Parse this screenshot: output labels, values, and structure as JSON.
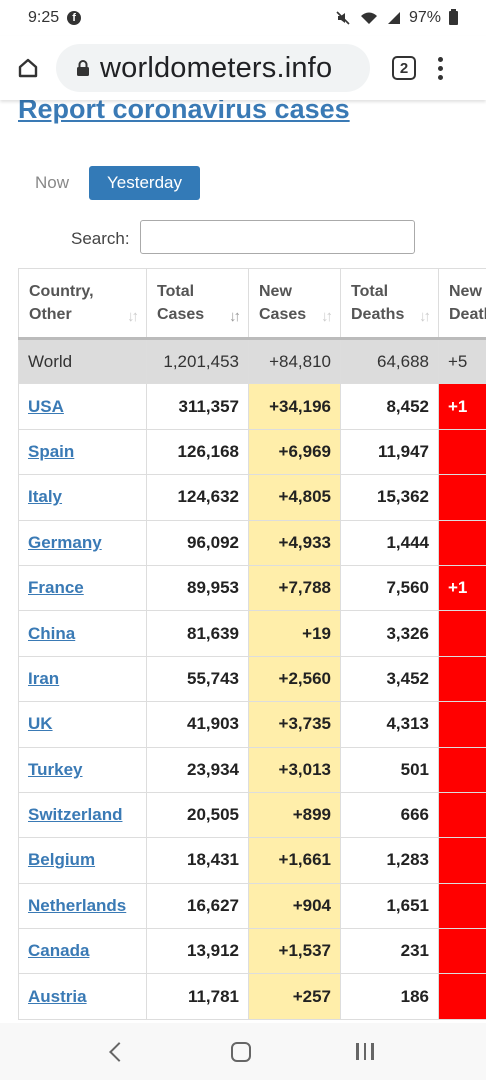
{
  "status_bar": {
    "time": "9:25",
    "battery": "97%",
    "facebook_glyph": "f"
  },
  "browser": {
    "url": "worldometers.info",
    "tab_count": "2"
  },
  "page": {
    "heading": "Report coronavirus cases",
    "tabs": {
      "now": "Now",
      "yesterday": "Yesterday",
      "active": "yesterday"
    },
    "search_label": "Search:",
    "search_value": ""
  },
  "table": {
    "headers": [
      "Country,\nOther",
      "Total\nCases",
      "New\nCases",
      "Total\nDeaths",
      "New\nDeaths"
    ],
    "sort_glyph": "↓↑",
    "world": {
      "country": "World",
      "total_cases": "1,201,453",
      "new_cases": "+84,810",
      "total_deaths": "64,688",
      "new_deaths": "+5"
    },
    "rows": [
      {
        "country": "USA",
        "total_cases": "311,357",
        "new_cases": "+34,196",
        "total_deaths": "8,452",
        "new_deaths": "+1"
      },
      {
        "country": "Spain",
        "total_cases": "126,168",
        "new_cases": "+6,969",
        "total_deaths": "11,947",
        "new_deaths": ""
      },
      {
        "country": "Italy",
        "total_cases": "124,632",
        "new_cases": "+4,805",
        "total_deaths": "15,362",
        "new_deaths": ""
      },
      {
        "country": "Germany",
        "total_cases": "96,092",
        "new_cases": "+4,933",
        "total_deaths": "1,444",
        "new_deaths": ""
      },
      {
        "country": "France",
        "total_cases": "89,953",
        "new_cases": "+7,788",
        "total_deaths": "7,560",
        "new_deaths": "+1"
      },
      {
        "country": "China",
        "total_cases": "81,639",
        "new_cases": "+19",
        "total_deaths": "3,326",
        "new_deaths": ""
      },
      {
        "country": "Iran",
        "total_cases": "55,743",
        "new_cases": "+2,560",
        "total_deaths": "3,452",
        "new_deaths": ""
      },
      {
        "country": "UK",
        "total_cases": "41,903",
        "new_cases": "+3,735",
        "total_deaths": "4,313",
        "new_deaths": ""
      },
      {
        "country": "Turkey",
        "total_cases": "23,934",
        "new_cases": "+3,013",
        "total_deaths": "501",
        "new_deaths": ""
      },
      {
        "country": "Switzerland",
        "total_cases": "20,505",
        "new_cases": "+899",
        "total_deaths": "666",
        "new_deaths": ""
      },
      {
        "country": "Belgium",
        "total_cases": "18,431",
        "new_cases": "+1,661",
        "total_deaths": "1,283",
        "new_deaths": ""
      },
      {
        "country": "Netherlands",
        "total_cases": "16,627",
        "new_cases": "+904",
        "total_deaths": "1,651",
        "new_deaths": ""
      },
      {
        "country": "Canada",
        "total_cases": "13,912",
        "new_cases": "+1,537",
        "total_deaths": "231",
        "new_deaths": ""
      },
      {
        "country": "Austria",
        "total_cases": "11,781",
        "new_cases": "+257",
        "total_deaths": "186",
        "new_deaths": ""
      }
    ]
  },
  "colors": {
    "link": "#3a7ab5",
    "active_tab": "#337ab7",
    "new_cases_bg": "#ffeeaa",
    "new_deaths_bg": "#ff0000"
  },
  "icons": [
    "facebook-icon",
    "mute-icon",
    "wifi-icon",
    "signal-icon",
    "battery-icon",
    "home-icon",
    "lock-icon",
    "tabs-icon",
    "more-menu-icon",
    "back-icon",
    "recent-apps-icon"
  ]
}
